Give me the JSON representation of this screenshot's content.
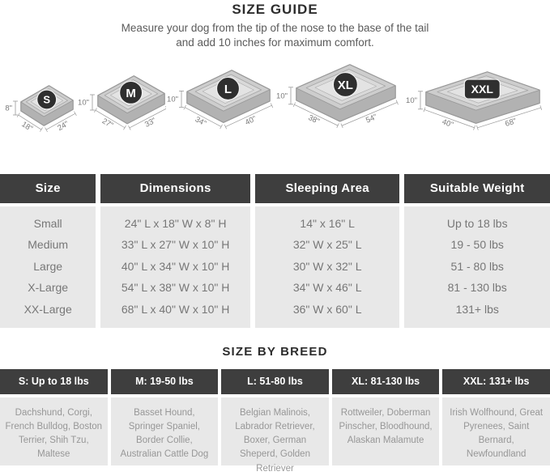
{
  "page": {
    "title": "SIZE GUIDE",
    "subtitle_line1": "Measure your dog from the tip of the nose to the base of the tail",
    "subtitle_line2": "and add 10 inches for maximum comfort."
  },
  "beds": [
    {
      "label": "S",
      "height": "8\"",
      "depth": "18\"",
      "width": "24\""
    },
    {
      "label": "M",
      "height": "10\"",
      "depth": "27\"",
      "width": "33\""
    },
    {
      "label": "L",
      "height": "10\"",
      "depth": "34\"",
      "width": "40\""
    },
    {
      "label": "XL",
      "height": "10\"",
      "depth": "38\"",
      "width": "54\""
    },
    {
      "label": "XXL",
      "height": "10\"",
      "depth": "40\"",
      "width": "68\""
    }
  ],
  "size_table": {
    "headers": [
      "Size",
      "Dimensions",
      "Sleeping Area",
      "Suitable Weight"
    ],
    "rows": [
      [
        "Small",
        "24\" L x 18\" W x 8\" H",
        "14\" x 16\" L",
        "Up to 18 lbs"
      ],
      [
        "Medium",
        "33\" L x 27\" W x 10\" H",
        "32\" W x 25\" L",
        "19 - 50 lbs"
      ],
      [
        "Large",
        "40\" L x 34\" W x 10\" H",
        "30\" W x 32\" L",
        "51 - 80 lbs"
      ],
      [
        "X-Large",
        "54\" L x 38\" W x 10\" H",
        "34\" W x 46\" L",
        "81 - 130 lbs"
      ],
      [
        "XX-Large",
        "68\" L x 40\" W x 10\" H",
        "36\" W x 60\" L",
        "131+ lbs"
      ]
    ]
  },
  "breed_section": {
    "title": "SIZE BY BREED",
    "columns": [
      {
        "header": "S: Up to 18 lbs",
        "breeds": "Dachshund, Corgi, French Bulldog, Boston Terrier, Shih Tzu, Maltese"
      },
      {
        "header": "M: 19-50 lbs",
        "breeds": "Basset Hound, Springer Spaniel, Border Collie, Australian Cattle Dog"
      },
      {
        "header": "L: 51-80 lbs",
        "breeds": "Belgian Malinois, Labrador Retriever, Boxer, German Sheperd, Golden Retriever"
      },
      {
        "header": "XL: 81-130 lbs",
        "breeds": "Rottweiler, Doberman Pinscher, Bloodhound, Alaskan Malamute"
      },
      {
        "header": "XXL: 131+ lbs",
        "breeds": "Irish Wolfhound, Great Pyrenees, Saint Bernard, Newfoundland"
      }
    ]
  },
  "colors": {
    "header_bg": "#3E3E3E",
    "panel_bg": "#E8E8E8",
    "badge_bg": "#2F2F2F",
    "body_text": "#777777",
    "breed_text": "#979797",
    "dim_label": "#7A7A7A"
  }
}
